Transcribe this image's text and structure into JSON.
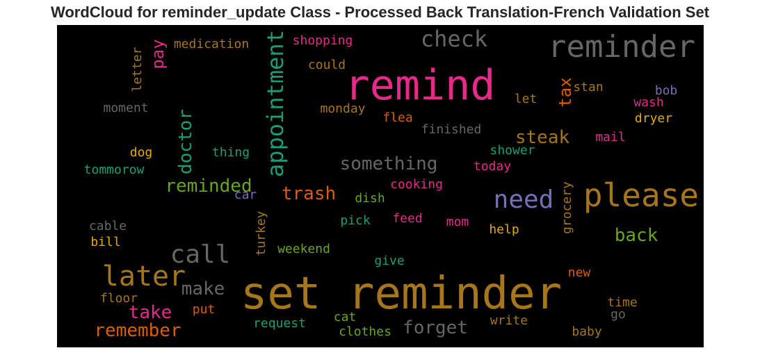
{
  "title": "WordCloud for reminder_update Class - Processed Back Translation-French Validation Set",
  "words": [
    {
      "text": "set reminder",
      "color": "#a6761d"
    },
    {
      "text": "remind",
      "color": "#e7298a"
    },
    {
      "text": "reminder",
      "color": "#666666"
    },
    {
      "text": "please",
      "color": "#a6761d"
    },
    {
      "text": "check",
      "color": "#666666"
    },
    {
      "text": "later",
      "color": "#a6761d"
    },
    {
      "text": "call",
      "color": "#666666"
    },
    {
      "text": "need",
      "color": "#7570b3"
    },
    {
      "text": "appointment",
      "color": "#1b9e77"
    },
    {
      "text": "doctor",
      "color": "#1b9e77"
    },
    {
      "text": "something",
      "color": "#666666"
    },
    {
      "text": "trash",
      "color": "#d95f02"
    },
    {
      "text": "reminded",
      "color": "#66a61e"
    },
    {
      "text": "steak",
      "color": "#a6761d"
    },
    {
      "text": "back",
      "color": "#66a61e"
    },
    {
      "text": "take",
      "color": "#e7298a"
    },
    {
      "text": "remember",
      "color": "#d95f02"
    },
    {
      "text": "forget",
      "color": "#666666"
    },
    {
      "text": "make",
      "color": "#666666"
    },
    {
      "text": "pay",
      "color": "#e7298a"
    },
    {
      "text": "tax",
      "color": "#d95f02"
    },
    {
      "text": "medication",
      "color": "#a6761d"
    },
    {
      "text": "shopping",
      "color": "#e7298a"
    },
    {
      "text": "could",
      "color": "#a6761d"
    },
    {
      "text": "letter",
      "color": "#a6761d"
    },
    {
      "text": "moment",
      "color": "#666666"
    },
    {
      "text": "monday",
      "color": "#a6761d"
    },
    {
      "text": "flea",
      "color": "#d95f02"
    },
    {
      "text": "finished",
      "color": "#666666"
    },
    {
      "text": "stan",
      "color": "#a6761d"
    },
    {
      "text": "let",
      "color": "#a6761d"
    },
    {
      "text": "bob",
      "color": "#7570b3"
    },
    {
      "text": "wash",
      "color": "#e7298a"
    },
    {
      "text": "dryer",
      "color": "#e6ab02"
    },
    {
      "text": "mail",
      "color": "#e7298a"
    },
    {
      "text": "shower",
      "color": "#1b9e77"
    },
    {
      "text": "today",
      "color": "#e7298a"
    },
    {
      "text": "dog",
      "color": "#e6ab02"
    },
    {
      "text": "thing",
      "color": "#1b9e77"
    },
    {
      "text": "tommorow",
      "color": "#1b9e77"
    },
    {
      "text": "car",
      "color": "#7570b3"
    },
    {
      "text": "dish",
      "color": "#66a61e"
    },
    {
      "text": "cooking",
      "color": "#e7298a"
    },
    {
      "text": "grocery",
      "color": "#a6761d"
    },
    {
      "text": "turkey",
      "color": "#a6761d"
    },
    {
      "text": "pick",
      "color": "#1b9e77"
    },
    {
      "text": "feed",
      "color": "#e7298a"
    },
    {
      "text": "mom",
      "color": "#e7298a"
    },
    {
      "text": "help",
      "color": "#e6ab02"
    },
    {
      "text": "cable",
      "color": "#666666"
    },
    {
      "text": "bill",
      "color": "#e6ab02"
    },
    {
      "text": "weekend",
      "color": "#66a61e"
    },
    {
      "text": "give",
      "color": "#1b9e77"
    },
    {
      "text": "new",
      "color": "#d95f02"
    },
    {
      "text": "floor",
      "color": "#a6761d"
    },
    {
      "text": "put",
      "color": "#d95f02"
    },
    {
      "text": "time",
      "color": "#a6761d"
    },
    {
      "text": "go",
      "color": "#666666"
    },
    {
      "text": "request",
      "color": "#1b9e77"
    },
    {
      "text": "cat",
      "color": "#66a61e"
    },
    {
      "text": "clothes",
      "color": "#66a61e"
    },
    {
      "text": "write",
      "color": "#a6761d"
    },
    {
      "text": "baby",
      "color": "#a6761d"
    }
  ]
}
